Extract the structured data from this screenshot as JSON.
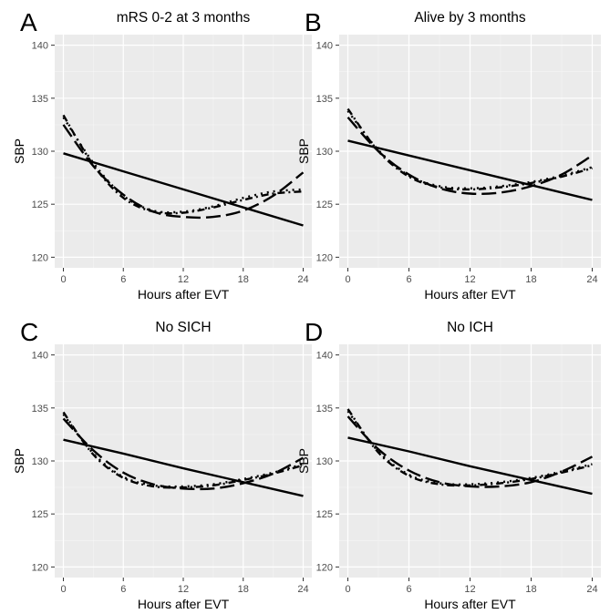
{
  "chart_data": [
    {
      "type": "line",
      "letter": "A",
      "title": "mRS 0-2 at 3 months",
      "xlabel": "Hours after EVT",
      "ylabel": "SBP",
      "xlim": [
        0,
        24
      ],
      "ylim": [
        119,
        141
      ],
      "x_ticks": [
        0,
        6,
        12,
        18,
        24
      ],
      "y_ticks": [
        120,
        125,
        130,
        135,
        140
      ],
      "grid": true,
      "series": [
        {
          "style": "solid",
          "x": [
            0,
            6,
            12,
            18,
            24
          ],
          "y": [
            129.8,
            128.1,
            126.4,
            124.7,
            123.0
          ]
        },
        {
          "style": "dashed",
          "x": [
            0,
            3,
            6,
            9,
            12,
            15,
            18,
            21,
            24
          ],
          "y": [
            132.5,
            128.6,
            125.9,
            124.3,
            123.8,
            123.8,
            124.4,
            125.8,
            128.0
          ]
        },
        {
          "style": "dotdash",
          "x": [
            0,
            3,
            6,
            9,
            12,
            15,
            18,
            21,
            24
          ],
          "y": [
            133.4,
            128.7,
            125.6,
            124.3,
            124.2,
            124.7,
            125.4,
            126.0,
            126.2
          ]
        },
        {
          "style": "dotted",
          "x": [
            0,
            3,
            6,
            9,
            12,
            15,
            18,
            21,
            24
          ],
          "y": [
            133.2,
            128.9,
            125.8,
            124.4,
            124.3,
            124.8,
            125.6,
            126.2,
            126.4
          ]
        }
      ]
    },
    {
      "type": "line",
      "letter": "B",
      "title": "Alive by 3 months",
      "xlabel": "Hours after EVT",
      "ylabel": "SBP",
      "xlim": [
        0,
        24
      ],
      "ylim": [
        119,
        141
      ],
      "x_ticks": [
        0,
        6,
        12,
        18,
        24
      ],
      "y_ticks": [
        120,
        125,
        130,
        135,
        140
      ],
      "grid": true,
      "series": [
        {
          "style": "solid",
          "x": [
            0,
            6,
            12,
            18,
            24
          ],
          "y": [
            131.0,
            129.6,
            128.2,
            126.8,
            125.4
          ]
        },
        {
          "style": "dashed",
          "x": [
            0,
            3,
            6,
            9,
            12,
            15,
            18,
            21,
            24
          ],
          "y": [
            133.2,
            130.0,
            127.8,
            126.5,
            126.0,
            126.1,
            126.7,
            127.8,
            129.6
          ]
        },
        {
          "style": "dotdash",
          "x": [
            0,
            3,
            6,
            9,
            12,
            15,
            18,
            21,
            24
          ],
          "y": [
            134.0,
            130.0,
            127.6,
            126.6,
            126.4,
            126.6,
            127.0,
            127.6,
            128.4
          ]
        },
        {
          "style": "dotted",
          "x": [
            0,
            3,
            6,
            9,
            12,
            15,
            18,
            21,
            24
          ],
          "y": [
            133.8,
            130.1,
            127.7,
            126.7,
            126.5,
            126.7,
            127.1,
            127.7,
            128.5
          ]
        }
      ]
    },
    {
      "type": "line",
      "letter": "C",
      "title": "No SICH",
      "xlabel": "Hours after EVT",
      "ylabel": "SBP",
      "xlim": [
        0,
        24
      ],
      "ylim": [
        119,
        141
      ],
      "x_ticks": [
        0,
        6,
        12,
        18,
        24
      ],
      "y_ticks": [
        120,
        125,
        130,
        135,
        140
      ],
      "grid": true,
      "series": [
        {
          "style": "solid",
          "x": [
            0,
            6,
            12,
            18,
            24
          ],
          "y": [
            132.0,
            130.7,
            129.3,
            128.0,
            126.7
          ]
        },
        {
          "style": "dashed",
          "x": [
            0,
            3,
            6,
            9,
            12,
            15,
            18,
            21,
            24
          ],
          "y": [
            134.0,
            131.0,
            128.9,
            127.8,
            127.4,
            127.4,
            127.9,
            128.8,
            130.3
          ]
        },
        {
          "style": "dotdash",
          "x": [
            0,
            3,
            6,
            9,
            12,
            15,
            18,
            21,
            24
          ],
          "y": [
            134.6,
            130.6,
            128.4,
            127.6,
            127.5,
            127.7,
            128.2,
            128.8,
            129.6
          ]
        },
        {
          "style": "dotted",
          "x": [
            0,
            3,
            6,
            9,
            12,
            15,
            18,
            21,
            24
          ],
          "y": [
            134.4,
            130.7,
            128.5,
            127.7,
            127.6,
            127.8,
            128.3,
            128.9,
            129.7
          ]
        }
      ]
    },
    {
      "type": "line",
      "letter": "D",
      "title": "No ICH",
      "xlabel": "Hours after EVT",
      "ylabel": "SBP",
      "xlim": [
        0,
        24
      ],
      "ylim": [
        119,
        141
      ],
      "x_ticks": [
        0,
        6,
        12,
        18,
        24
      ],
      "y_ticks": [
        120,
        125,
        130,
        135,
        140
      ],
      "grid": true,
      "series": [
        {
          "style": "solid",
          "x": [
            0,
            6,
            12,
            18,
            24
          ],
          "y": [
            132.2,
            130.9,
            129.5,
            128.2,
            126.9
          ]
        },
        {
          "style": "dashed",
          "x": [
            0,
            3,
            6,
            9,
            12,
            15,
            18,
            21,
            24
          ],
          "y": [
            134.2,
            131.1,
            129.1,
            128.0,
            127.6,
            127.6,
            128.0,
            129.0,
            130.4
          ]
        },
        {
          "style": "dotdash",
          "x": [
            0,
            3,
            6,
            9,
            12,
            15,
            18,
            21,
            24
          ],
          "y": [
            134.9,
            130.8,
            128.6,
            127.8,
            127.7,
            127.9,
            128.3,
            128.9,
            129.6
          ]
        },
        {
          "style": "dotted",
          "x": [
            0,
            3,
            6,
            9,
            12,
            15,
            18,
            21,
            24
          ],
          "y": [
            134.7,
            130.9,
            128.7,
            127.9,
            127.8,
            128.0,
            128.4,
            129.0,
            129.7
          ]
        }
      ]
    }
  ]
}
